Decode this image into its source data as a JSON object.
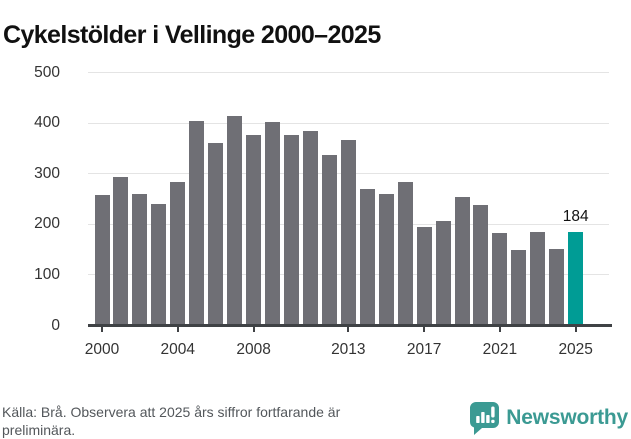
{
  "header": {
    "title": "Cykelstölder i Vellinge 2000–2025"
  },
  "chart_data": {
    "type": "bar",
    "title": "Cykelstölder i Vellinge 2000–2025",
    "categories": [
      "2000",
      "2001",
      "2002",
      "2003",
      "2004",
      "2005",
      "2006",
      "2007",
      "2008",
      "2009",
      "2010",
      "2011",
      "2012",
      "2013",
      "2014",
      "2015",
      "2016",
      "2017",
      "2018",
      "2019",
      "2020",
      "2021",
      "2022",
      "2023",
      "2024",
      "2025"
    ],
    "values": [
      257,
      293,
      258,
      239,
      282,
      403,
      360,
      413,
      376,
      401,
      376,
      384,
      336,
      365,
      269,
      258,
      282,
      194,
      206,
      252,
      238,
      182,
      149,
      183,
      151,
      184
    ],
    "xlabel": "",
    "ylabel": "",
    "ylim": [
      0,
      500
    ],
    "y_ticks": [
      0,
      100,
      200,
      300,
      400,
      500
    ],
    "x_tick_labels": [
      "2000",
      "2004",
      "2008",
      "2013",
      "2017",
      "2021",
      "2025"
    ],
    "grid": "horizontal",
    "legend": "none",
    "highlight": {
      "category": "2025",
      "label": "184"
    },
    "colors": {
      "bar": "#6f6f75",
      "highlight": "#009c95",
      "grid": "#e4e4e4",
      "axis": "#3f4245",
      "tick_text": "#333333"
    }
  },
  "footer": {
    "source_text": "Källa: Brå. Observera att 2025 års siffror fortfarande är preliminära.",
    "brand": {
      "name": "Newsworthy",
      "color": "#3b9a93",
      "icon": "newsworthy-chart-bubble-icon"
    }
  }
}
